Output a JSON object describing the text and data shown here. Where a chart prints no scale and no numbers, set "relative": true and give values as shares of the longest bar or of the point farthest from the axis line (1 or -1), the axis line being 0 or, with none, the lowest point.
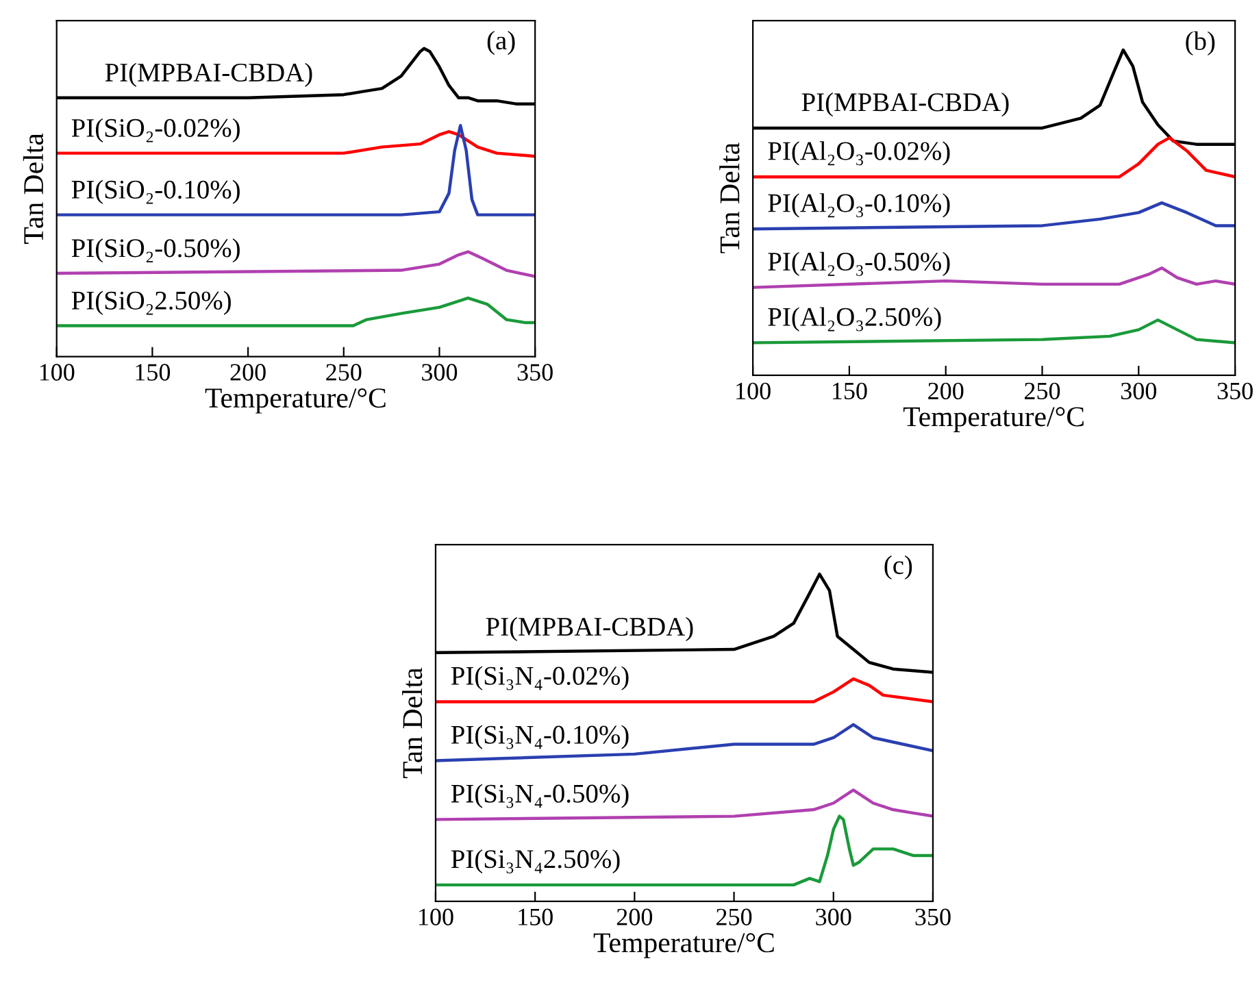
{
  "chart_data": [
    {
      "type": "line",
      "relative": true,
      "ylabel": "Tan Delta",
      "xlabel": "Temperature/°C",
      "xlim": [
        100,
        350
      ],
      "xticks": [
        100,
        150,
        200,
        250,
        300,
        350
      ],
      "tick_labels": "x",
      "grid": false,
      "annotations": [
        "(a)"
      ],
      "series": [
        {
          "name": "PI(MPBAI-CBDA)",
          "color": "#000000",
          "x": [
            100,
            150,
            200,
            250,
            260,
            270,
            280,
            290,
            292,
            295,
            300,
            305,
            310,
            315,
            320,
            330,
            340,
            350
          ],
          "values": [
            0.84,
            0.84,
            0.84,
            0.85,
            0.86,
            0.87,
            0.91,
            0.99,
            1,
            0.99,
            0.94,
            0.88,
            0.84,
            0.84,
            0.83,
            0.83,
            0.82,
            0.82
          ]
        },
        {
          "name": "PI(SiO₂-0.02%)",
          "color": "#ff0000",
          "x": [
            100,
            250,
            270,
            290,
            300,
            305,
            310,
            320,
            330,
            350
          ],
          "values": [
            0.66,
            0.66,
            0.68,
            0.69,
            0.72,
            0.73,
            0.72,
            0.68,
            0.66,
            0.65
          ]
        },
        {
          "name": "PI(SiO₂-0.10%)",
          "color": "#2a3fb0",
          "x": [
            100,
            280,
            300,
            305,
            308,
            311,
            314,
            317,
            320,
            350
          ],
          "values": [
            0.46,
            0.46,
            0.47,
            0.53,
            0.67,
            0.75,
            0.67,
            0.51,
            0.46,
            0.46
          ]
        },
        {
          "name": "PI(SiO₂-0.50%)",
          "color": "#b040b0",
          "x": [
            100,
            280,
            300,
            310,
            315,
            322,
            335,
            350
          ],
          "values": [
            0.27,
            0.28,
            0.3,
            0.33,
            0.34,
            0.32,
            0.28,
            0.26
          ]
        },
        {
          "name": "PI(SiO₂2.50%)",
          "color": "#1a9a3a",
          "x": [
            100,
            255,
            262,
            280,
            300,
            305,
            315,
            325,
            335,
            345,
            350
          ],
          "values": [
            0.1,
            0.1,
            0.12,
            0.14,
            0.16,
            0.17,
            0.19,
            0.17,
            0.12,
            0.11,
            0.11
          ]
        }
      ]
    },
    {
      "type": "line",
      "relative": true,
      "ylabel": "Tan Delta",
      "xlabel": "Temperature/°C",
      "xlim": [
        100,
        350
      ],
      "xticks": [
        100,
        150,
        200,
        250,
        300,
        350
      ],
      "tick_labels": "x",
      "grid": false,
      "annotations": [
        "(b)"
      ],
      "series": [
        {
          "name": "PI(MPBAI-CBDA)",
          "color": "#000000",
          "x": [
            100,
            250,
            270,
            280,
            287,
            292,
            297,
            302,
            310,
            318,
            330,
            350
          ],
          "values": [
            0.76,
            0.76,
            0.79,
            0.83,
            0.93,
            1,
            0.95,
            0.84,
            0.77,
            0.72,
            0.71,
            0.71
          ]
        },
        {
          "name": "PI(Al₂O₃-0.02%)",
          "color": "#ff0000",
          "x": [
            100,
            290,
            300,
            310,
            316,
            325,
            335,
            350
          ],
          "values": [
            0.61,
            0.61,
            0.65,
            0.71,
            0.73,
            0.69,
            0.63,
            0.61
          ]
        },
        {
          "name": "PI(Al₂O₃-0.10%)",
          "color": "#2a3fb0",
          "x": [
            100,
            250,
            280,
            300,
            312,
            325,
            340,
            350
          ],
          "values": [
            0.45,
            0.46,
            0.48,
            0.5,
            0.53,
            0.5,
            0.46,
            0.46
          ]
        },
        {
          "name": "PI(Al₂O₃-0.50%)",
          "color": "#b040b0",
          "x": [
            100,
            200,
            250,
            290,
            305,
            312,
            320,
            330,
            340,
            350
          ],
          "values": [
            0.27,
            0.29,
            0.28,
            0.28,
            0.31,
            0.33,
            0.3,
            0.28,
            0.29,
            0.28
          ]
        },
        {
          "name": "PI(Al₂O₃2.50%)",
          "color": "#1a9a3a",
          "x": [
            100,
            250,
            285,
            300,
            310,
            320,
            330,
            350
          ],
          "values": [
            0.1,
            0.11,
            0.12,
            0.14,
            0.17,
            0.14,
            0.11,
            0.1
          ]
        }
      ]
    },
    {
      "type": "line",
      "relative": true,
      "ylabel": "Tan Delta",
      "xlabel": "Temperature/°C",
      "xlim": [
        100,
        350
      ],
      "xticks": [
        100,
        150,
        200,
        250,
        300,
        350
      ],
      "tick_labels": "x",
      "grid": false,
      "annotations": [
        "(c)"
      ],
      "series": [
        {
          "name": "PI(MPBAI-CBDA)",
          "color": "#000000",
          "x": [
            100,
            250,
            270,
            280,
            287,
            293,
            298,
            302,
            310,
            318,
            330,
            350
          ],
          "values": [
            0.76,
            0.77,
            0.81,
            0.85,
            0.93,
            1,
            0.95,
            0.81,
            0.77,
            0.73,
            0.71,
            0.7
          ]
        },
        {
          "name": "PI(Si₃N₄-0.02%)",
          "color": "#ff0000",
          "x": [
            100,
            290,
            300,
            310,
            318,
            325,
            350
          ],
          "values": [
            0.61,
            0.61,
            0.64,
            0.68,
            0.66,
            0.63,
            0.61
          ]
        },
        {
          "name": "PI(Si₃N₄-0.10%)",
          "color": "#2a3fb0",
          "x": [
            100,
            200,
            250,
            290,
            300,
            310,
            320,
            335,
            350
          ],
          "values": [
            0.43,
            0.45,
            0.48,
            0.48,
            0.5,
            0.54,
            0.5,
            0.48,
            0.46
          ]
        },
        {
          "name": "PI(Si₃N₄-0.50%)",
          "color": "#b040b0",
          "x": [
            100,
            250,
            290,
            300,
            310,
            320,
            330,
            340,
            350
          ],
          "values": [
            0.25,
            0.26,
            0.28,
            0.3,
            0.34,
            0.3,
            0.28,
            0.27,
            0.26
          ]
        },
        {
          "name": "PI(Si₃N₄2.50%)",
          "color": "#1a9a3a",
          "x": [
            100,
            280,
            288,
            293,
            297,
            300,
            303,
            305,
            308,
            310,
            313,
            320,
            330,
            340,
            350
          ],
          "values": [
            0.05,
            0.05,
            0.07,
            0.06,
            0.14,
            0.22,
            0.26,
            0.25,
            0.16,
            0.11,
            0.12,
            0.16,
            0.16,
            0.14,
            0.14
          ]
        }
      ]
    }
  ]
}
